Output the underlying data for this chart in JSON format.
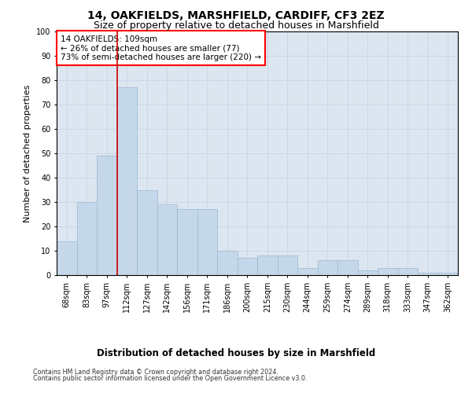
{
  "title1": "14, OAKFIELDS, MARSHFIELD, CARDIFF, CF3 2EZ",
  "title2": "Size of property relative to detached houses in Marshfield",
  "xlabel": "Distribution of detached houses by size in Marshfield",
  "ylabel": "Number of detached properties",
  "categories": [
    "68sqm",
    "83sqm",
    "97sqm",
    "112sqm",
    "127sqm",
    "142sqm",
    "156sqm",
    "171sqm",
    "186sqm",
    "200sqm",
    "215sqm",
    "230sqm",
    "244sqm",
    "259sqm",
    "274sqm",
    "289sqm",
    "318sqm",
    "333sqm",
    "347sqm",
    "362sqm"
  ],
  "values": [
    14,
    30,
    49,
    77,
    35,
    29,
    27,
    27,
    10,
    7,
    8,
    8,
    3,
    6,
    6,
    2,
    3,
    3,
    1,
    1
  ],
  "bar_color": "#c5d8ea",
  "bar_edge_color": "#9ab8d0",
  "bar_linewidth": 0.5,
  "vline_idx": 3,
  "vline_color": "#cc0000",
  "annotation_line1": "14 OAKFIELDS: 109sqm",
  "annotation_line2": "← 26% of detached houses are smaller (77)",
  "annotation_line3": "73% of semi-detached houses are larger (220) →",
  "ylim": [
    0,
    100
  ],
  "yticks": [
    0,
    10,
    20,
    30,
    40,
    50,
    60,
    70,
    80,
    90,
    100
  ],
  "grid_color": "#ccd6e8",
  "plot_background": "#dce6f0",
  "footer_line1": "Contains HM Land Registry data © Crown copyright and database right 2024.",
  "footer_line2": "Contains public sector information licensed under the Open Government Licence v3.0.",
  "title1_fontsize": 10,
  "title2_fontsize": 9,
  "xlabel_fontsize": 8.5,
  "ylabel_fontsize": 8,
  "tick_fontsize": 7,
  "annotation_fontsize": 7.5,
  "footer_fontsize": 5.8
}
